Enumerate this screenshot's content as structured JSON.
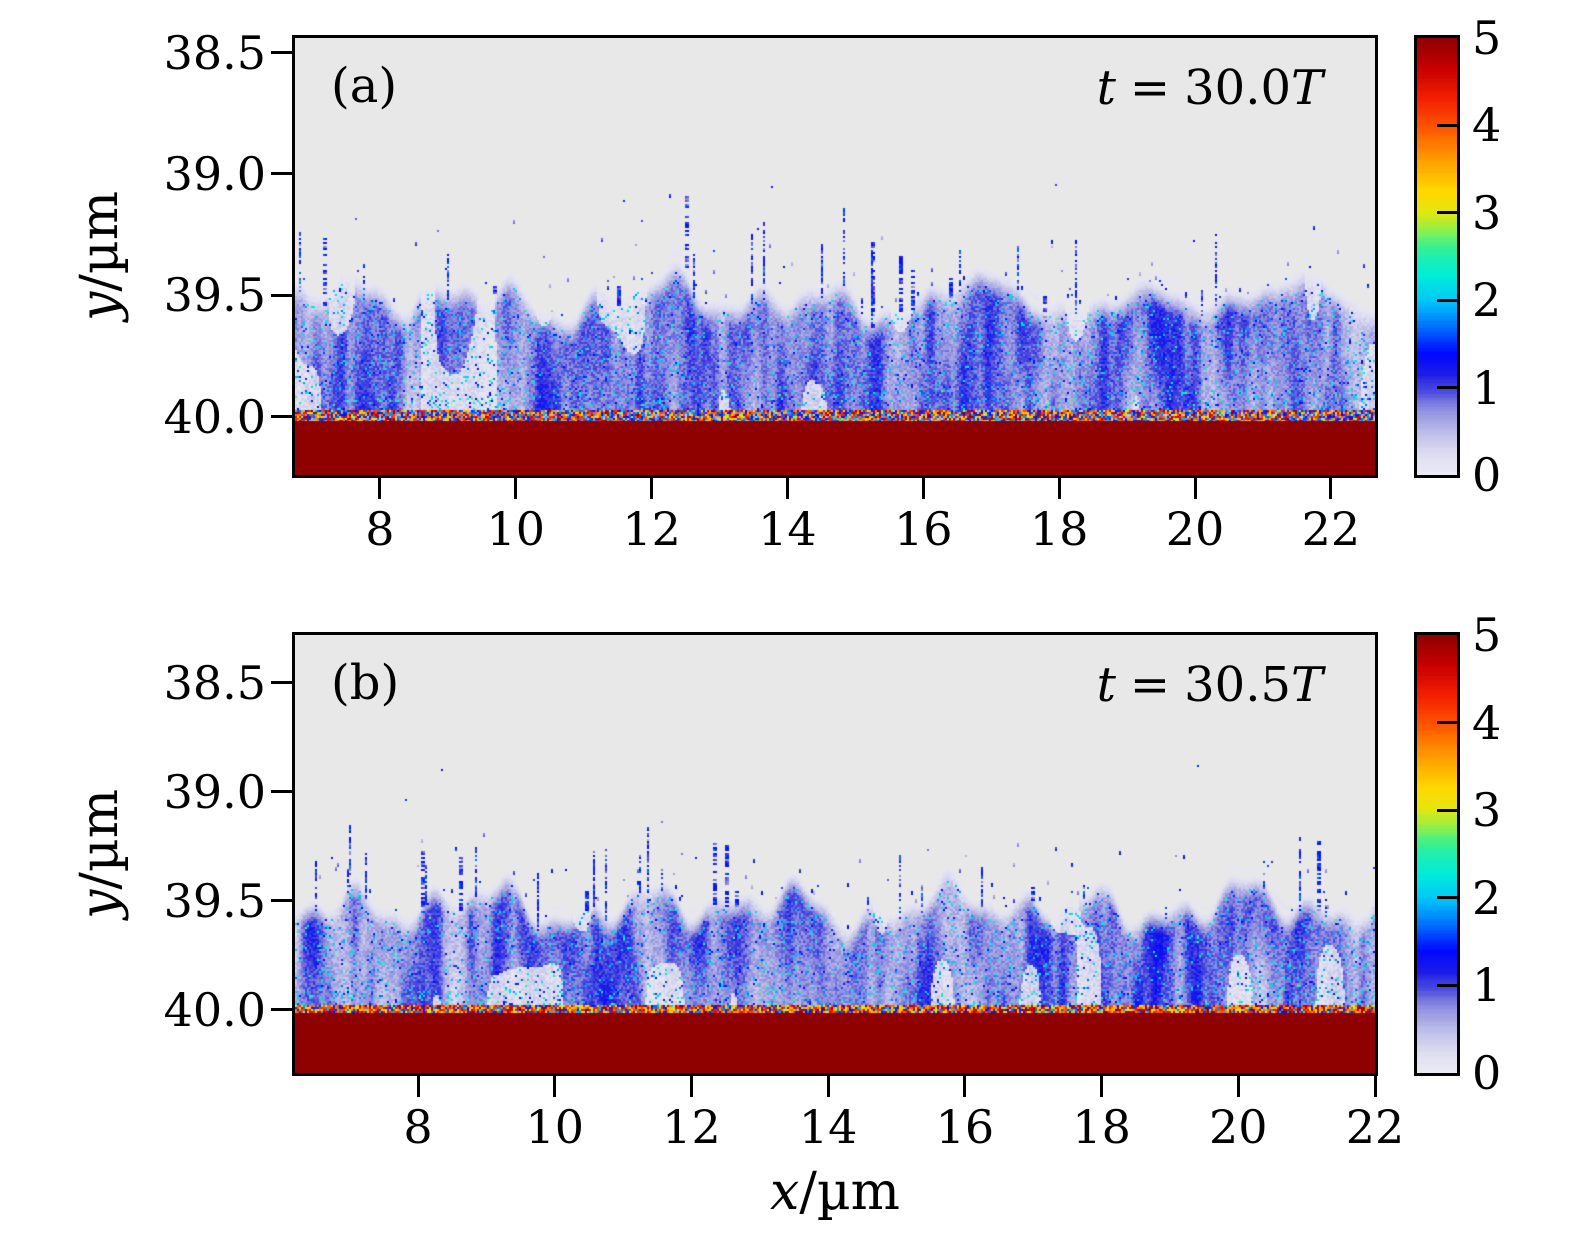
{
  "chart_data": {
    "type": "heatmap",
    "layout": "two stacked panels sharing one x axis label, each with its own jet-like colorbar",
    "x_axis": {
      "label_var": "x",
      "label_unit": "/µm"
    },
    "y_axis": {
      "label_var": "y",
      "label_unit": "/µm",
      "direction": "increasing downward"
    },
    "colorbar": {
      "min": 0,
      "max": 5,
      "tick_labels": [
        "5",
        "4",
        "3",
        "2",
        "1",
        "0"
      ],
      "tick_values": [
        5,
        4,
        3,
        2,
        1,
        0
      ],
      "inner_tick_values": [
        4,
        3,
        2,
        1
      ],
      "colormap_stops": [
        [
          0.0,
          "#ececf4"
        ],
        [
          0.05,
          "#dcdcf0"
        ],
        [
          0.1,
          "#bcbce8"
        ],
        [
          0.15,
          "#8f8fe0"
        ],
        [
          0.19,
          "#5050dd"
        ],
        [
          0.23,
          "#1d1de8"
        ],
        [
          0.28,
          "#0008ff"
        ],
        [
          0.34,
          "#0070ff"
        ],
        [
          0.4,
          "#00c8f8"
        ],
        [
          0.46,
          "#00eed8"
        ],
        [
          0.52,
          "#30f098"
        ],
        [
          0.56,
          "#88f050"
        ],
        [
          0.6,
          "#e0e810"
        ],
        [
          0.65,
          "#ffd800"
        ],
        [
          0.72,
          "#ffa000"
        ],
        [
          0.79,
          "#ff5a00"
        ],
        [
          0.86,
          "#f42000"
        ],
        [
          0.93,
          "#c80000"
        ],
        [
          1.0,
          "#8f0000"
        ]
      ]
    },
    "panel_background": "#e8e8e8",
    "slab_color": "#8f0000",
    "panels": [
      {
        "id": "a",
        "corner_label": "(a)",
        "time_annotation": {
          "text": "t = 30.0T",
          "variable": "t",
          "equals": "=",
          "value": "30.0",
          "unit": "T"
        },
        "x_range": [
          6.75,
          22.65
        ],
        "y_range": [
          38.44,
          40.24
        ],
        "x_tick_values": [
          8,
          10,
          12,
          14,
          16,
          18,
          20,
          22
        ],
        "x_tick_labels": [
          "8",
          "10",
          "12",
          "14",
          "16",
          "18",
          "20",
          "22"
        ],
        "y_tick_values": [
          38.5,
          39.0,
          39.5,
          40.0
        ],
        "y_tick_labels": [
          "38.5",
          "39.0",
          "39.5",
          "40.0"
        ],
        "features": {
          "vacuum_region_value": 0,
          "rippled_plasma_surface_y": 39.5,
          "turbulent_band_y": [
            39.45,
            40.0
          ],
          "turbulent_band_value_range": [
            0,
            2
          ],
          "hot_interface_y": 40.0,
          "hot_interface_value_range": [
            2,
            5
          ],
          "dense_slab_y_range": [
            40.0,
            40.24
          ],
          "dense_slab_value": 5
        },
        "render": {
          "seed": 41,
          "surface_base": 39.5,
          "surface_amps": [
            0.05,
            0.042,
            0.028,
            0.03
          ],
          "surface_periods": [
            2.4,
            1.17,
            0.62,
            4.3
          ],
          "right_smooth": true,
          "spike_count": 24,
          "speck_count": 80,
          "stray_count": 3,
          "hot_warm_prob": 0.55
        }
      },
      {
        "id": "b",
        "corner_label": "(b)",
        "time_annotation": {
          "text": "t = 30.5T",
          "variable": "t",
          "equals": "=",
          "value": "30.5",
          "unit": "T"
        },
        "x_range": [
          6.2,
          22.0
        ],
        "y_range": [
          38.28,
          40.29
        ],
        "x_tick_values": [
          8,
          10,
          12,
          14,
          16,
          18,
          20,
          22
        ],
        "x_tick_labels": [
          "8",
          "10",
          "12",
          "14",
          "16",
          "18",
          "20",
          "22"
        ],
        "y_tick_values": [
          38.5,
          39.0,
          39.5,
          40.0
        ],
        "y_tick_labels": [
          "38.5",
          "39.0",
          "39.5",
          "40.0"
        ],
        "features": {
          "vacuum_region_value": 0,
          "rippled_plasma_surface_y": 39.5,
          "turbulent_band_y": [
            39.45,
            40.0
          ],
          "turbulent_band_value_range": [
            0,
            2
          ],
          "hot_interface_y": 40.0,
          "hot_interface_value_range": [
            3,
            5
          ],
          "dense_slab_y_range": [
            40.0,
            40.29
          ],
          "dense_slab_value": 5
        },
        "render": {
          "seed": 87,
          "surface_base": 39.51,
          "surface_amps": [
            0.055,
            0.05,
            0.032,
            0.028
          ],
          "surface_periods": [
            2.2,
            1.08,
            0.58,
            3.9
          ],
          "right_smooth": false,
          "spike_count": 30,
          "speck_count": 85,
          "stray_count": 3,
          "hot_warm_prob": 0.75
        }
      }
    ]
  }
}
